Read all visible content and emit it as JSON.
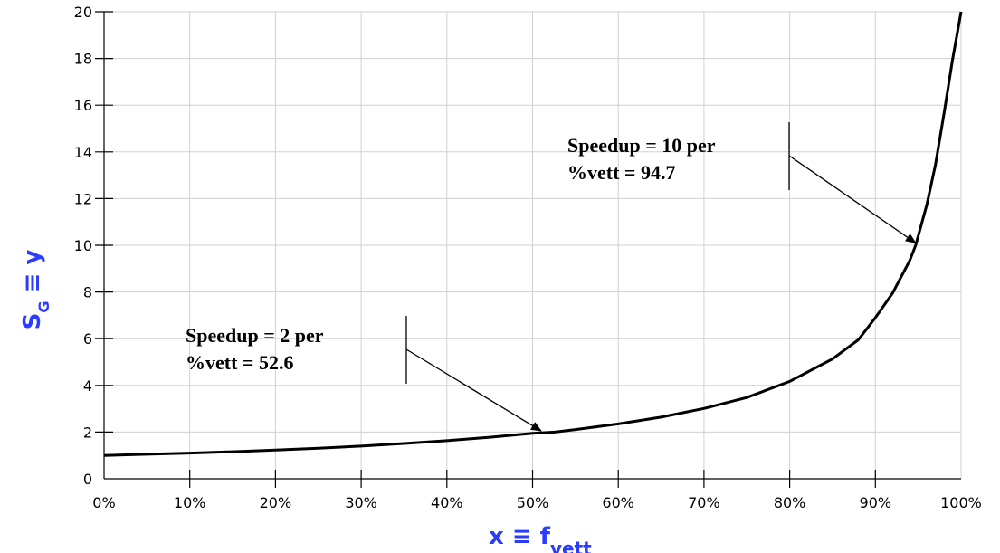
{
  "chart_data": {
    "type": "line",
    "title": "",
    "xlabel": {
      "main": "x ≡ f",
      "sub": "vett"
    },
    "ylabel": {
      "main": "S",
      "sub": "G",
      "rest": " ≡ y"
    },
    "xlim": [
      0,
      1
    ],
    "ylim": [
      0,
      20
    ],
    "x_ticks": [
      0,
      0.1,
      0.2,
      0.3,
      0.4,
      0.5,
      0.6,
      0.7,
      0.8,
      0.9,
      1.0
    ],
    "x_tick_labels": [
      "0%",
      "10%",
      "20%",
      "30%",
      "40%",
      "50%",
      "60%",
      "70%",
      "80%",
      "90%",
      "100%"
    ],
    "y_ticks": [
      0,
      2,
      4,
      6,
      8,
      10,
      12,
      14,
      16,
      18,
      20
    ],
    "y_tick_labels": [
      "0",
      "2",
      "4",
      "6",
      "8",
      "10",
      "12",
      "14",
      "16",
      "18",
      "20"
    ],
    "grid": true,
    "series": [
      {
        "x": [
          0,
          0.05,
          0.1,
          0.15,
          0.2,
          0.25,
          0.3,
          0.35,
          0.4,
          0.45,
          0.5,
          0.526,
          0.55,
          0.6,
          0.65,
          0.7,
          0.75,
          0.8,
          0.85,
          0.88,
          0.9,
          0.92,
          0.94,
          0.947,
          0.96,
          0.97,
          0.98,
          0.99,
          1.0
        ],
        "y": [
          1.0,
          1.05,
          1.1,
          1.16,
          1.23,
          1.31,
          1.4,
          1.51,
          1.63,
          1.78,
          1.95,
          2.0,
          2.11,
          2.35,
          2.64,
          3.01,
          3.48,
          4.17,
          5.13,
          5.95,
          6.9,
          7.94,
          9.34,
          10.0,
          11.73,
          13.43,
          15.63,
          17.93,
          20.0
        ]
      }
    ],
    "annotations": [
      {
        "lines": [
          "Speedup = 2 per",
          "%vett = 52.6"
        ],
        "target": [
          0.51,
          2.05
        ]
      },
      {
        "lines": [
          "Speedup = 10 per",
          "%vett = 94.7"
        ],
        "target": [
          0.947,
          10.1
        ]
      }
    ]
  }
}
